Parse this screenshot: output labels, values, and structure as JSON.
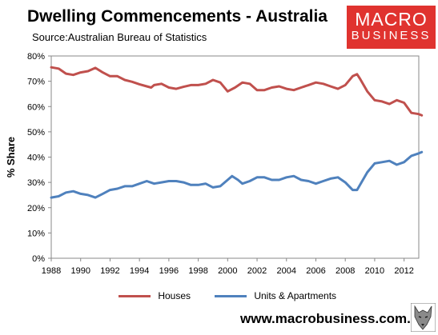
{
  "header": {
    "title": "Dwelling Commencements - Australia",
    "subtitle": "Source:Australian Bureau of Statistics"
  },
  "logo": {
    "line1": "MACRO",
    "line2": "BUSINESS",
    "color": "#e0332f"
  },
  "footer": {
    "url": "www.macrobusiness.com.au"
  },
  "chart_data": {
    "type": "line",
    "ylabel": "% Share",
    "xlabel": "",
    "ylim": [
      0,
      80
    ],
    "xlim": [
      1988,
      2013
    ],
    "y_ticks": [
      "0%",
      "10%",
      "20%",
      "30%",
      "40%",
      "50%",
      "60%",
      "70%",
      "80%"
    ],
    "x_ticks": [
      "1988",
      "1990",
      "1992",
      "1994",
      "1996",
      "1998",
      "2000",
      "2002",
      "2004",
      "2006",
      "2008",
      "2010",
      "2012"
    ],
    "grid": false,
    "legend_position": "bottom",
    "series": [
      {
        "name": "Houses",
        "color": "#c0504d",
        "points": [
          [
            1988,
            75.5
          ],
          [
            1988.5,
            75
          ],
          [
            1989,
            73
          ],
          [
            1989.5,
            72.5
          ],
          [
            1990,
            73.5
          ],
          [
            1990.5,
            74
          ],
          [
            1991,
            75.3
          ],
          [
            1991.5,
            73.5
          ],
          [
            1992,
            72
          ],
          [
            1992.5,
            72
          ],
          [
            1993,
            70.5
          ],
          [
            1993.5,
            69.8
          ],
          [
            1994,
            68.8
          ],
          [
            1994.5,
            68
          ],
          [
            1994.8,
            67.5
          ],
          [
            1995,
            68.5
          ],
          [
            1995.5,
            69
          ],
          [
            1996,
            67.5
          ],
          [
            1996.5,
            67
          ],
          [
            1997,
            67.8
          ],
          [
            1997.5,
            68.5
          ],
          [
            1998,
            68.5
          ],
          [
            1998.5,
            69
          ],
          [
            1999,
            70.5
          ],
          [
            1999.5,
            69.5
          ],
          [
            2000,
            66
          ],
          [
            2000.5,
            67.5
          ],
          [
            2001,
            69.5
          ],
          [
            2001.5,
            69
          ],
          [
            2002,
            66.5
          ],
          [
            2002.5,
            66.5
          ],
          [
            2003,
            67.5
          ],
          [
            2003.5,
            68
          ],
          [
            2004,
            67
          ],
          [
            2004.5,
            66.5
          ],
          [
            2005,
            67.5
          ],
          [
            2005.5,
            68.5
          ],
          [
            2006,
            69.5
          ],
          [
            2006.5,
            69
          ],
          [
            2007,
            68
          ],
          [
            2007.5,
            67
          ],
          [
            2008,
            68.5
          ],
          [
            2008.5,
            72
          ],
          [
            2008.8,
            72.8
          ],
          [
            2009,
            71
          ],
          [
            2009.5,
            66
          ],
          [
            2010,
            62.5
          ],
          [
            2010.5,
            62
          ],
          [
            2011,
            61
          ],
          [
            2011.5,
            62.5
          ],
          [
            2012,
            61.5
          ],
          [
            2012.5,
            57.5
          ],
          [
            2013,
            57
          ],
          [
            2013.2,
            56.5
          ]
        ]
      },
      {
        "name": "Units & Apartments",
        "color": "#4f81bd",
        "points": [
          [
            1988,
            24
          ],
          [
            1988.5,
            24.5
          ],
          [
            1989,
            26
          ],
          [
            1989.5,
            26.5
          ],
          [
            1990,
            25.5
          ],
          [
            1990.5,
            25
          ],
          [
            1991,
            24
          ],
          [
            1991.5,
            25.5
          ],
          [
            1992,
            27
          ],
          [
            1992.5,
            27.5
          ],
          [
            1993,
            28.5
          ],
          [
            1993.5,
            28.5
          ],
          [
            1994,
            29.5
          ],
          [
            1994.5,
            30.5
          ],
          [
            1995,
            29.5
          ],
          [
            1995.5,
            30
          ],
          [
            1996,
            30.5
          ],
          [
            1996.5,
            30.5
          ],
          [
            1997,
            30
          ],
          [
            1997.5,
            29
          ],
          [
            1998,
            29
          ],
          [
            1998.5,
            29.5
          ],
          [
            1999,
            28
          ],
          [
            1999.5,
            28.5
          ],
          [
            2000,
            31
          ],
          [
            2000.3,
            32.5
          ],
          [
            2000.7,
            31
          ],
          [
            2001,
            29.5
          ],
          [
            2001.5,
            30.5
          ],
          [
            2002,
            32
          ],
          [
            2002.5,
            32
          ],
          [
            2003,
            31
          ],
          [
            2003.5,
            31
          ],
          [
            2004,
            32
          ],
          [
            2004.5,
            32.5
          ],
          [
            2005,
            31
          ],
          [
            2005.5,
            30.5
          ],
          [
            2006,
            29.5
          ],
          [
            2006.5,
            30.5
          ],
          [
            2007,
            31.5
          ],
          [
            2007.5,
            32
          ],
          [
            2008,
            30
          ],
          [
            2008.5,
            27
          ],
          [
            2008.8,
            27
          ],
          [
            2009,
            29
          ],
          [
            2009.5,
            34
          ],
          [
            2010,
            37.5
          ],
          [
            2010.5,
            38
          ],
          [
            2011,
            38.5
          ],
          [
            2011.5,
            37
          ],
          [
            2012,
            38
          ],
          [
            2012.5,
            40.5
          ],
          [
            2013,
            41.5
          ],
          [
            2013.2,
            42
          ]
        ]
      }
    ]
  }
}
